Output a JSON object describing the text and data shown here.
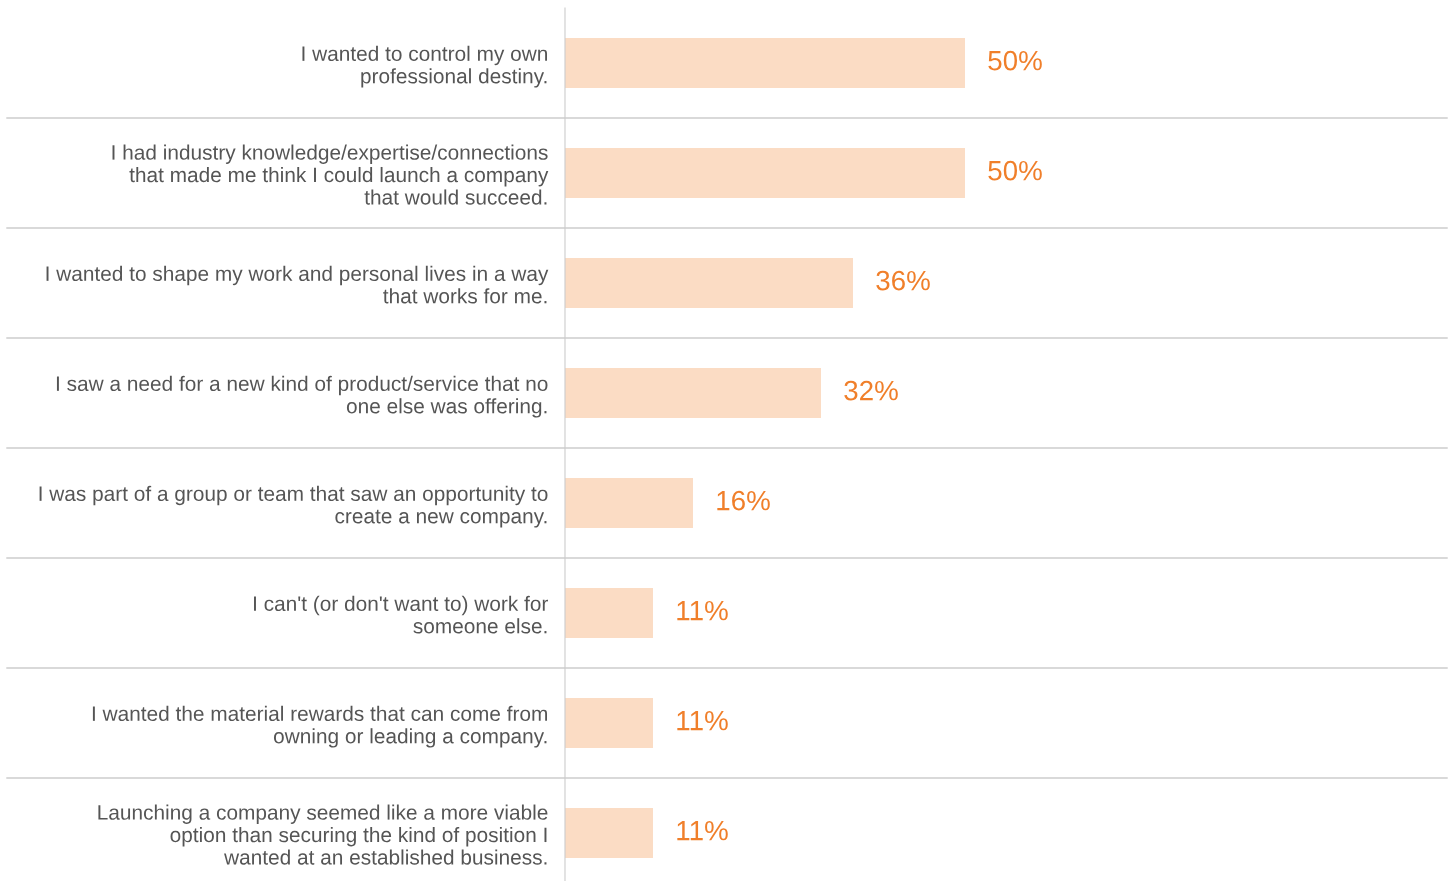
{
  "chart_data": {
    "type": "bar",
    "orientation": "horizontal",
    "categories": [
      "I wanted to control my own\nprofessional destiny.",
      "I had industry knowledge/expertise/connections\nthat made me think I could launch a company\nthat would succeed.",
      "I wanted to shape my work and personal lives in a way\nthat works for me.",
      "I saw a need for a new kind of product/service that no\none else was offering.",
      "I was part of a group or team that saw an opportunity to\ncreate a new company.",
      "I can't (or don't want to) work for\nsomeone else.",
      "I wanted the material rewards that can come from\nowning or leading a company.",
      "Launching a company seemed like a more viable\noption than securing the kind of position I\nwanted at an established business."
    ],
    "values": [
      50,
      50,
      36,
      32,
      16,
      11,
      11,
      11
    ],
    "value_labels": [
      "50%",
      "50%",
      "36%",
      "32%",
      "16%",
      "11%",
      "11%",
      "11%"
    ],
    "color": "#fbdcc4",
    "tick_labels": "y"
  }
}
